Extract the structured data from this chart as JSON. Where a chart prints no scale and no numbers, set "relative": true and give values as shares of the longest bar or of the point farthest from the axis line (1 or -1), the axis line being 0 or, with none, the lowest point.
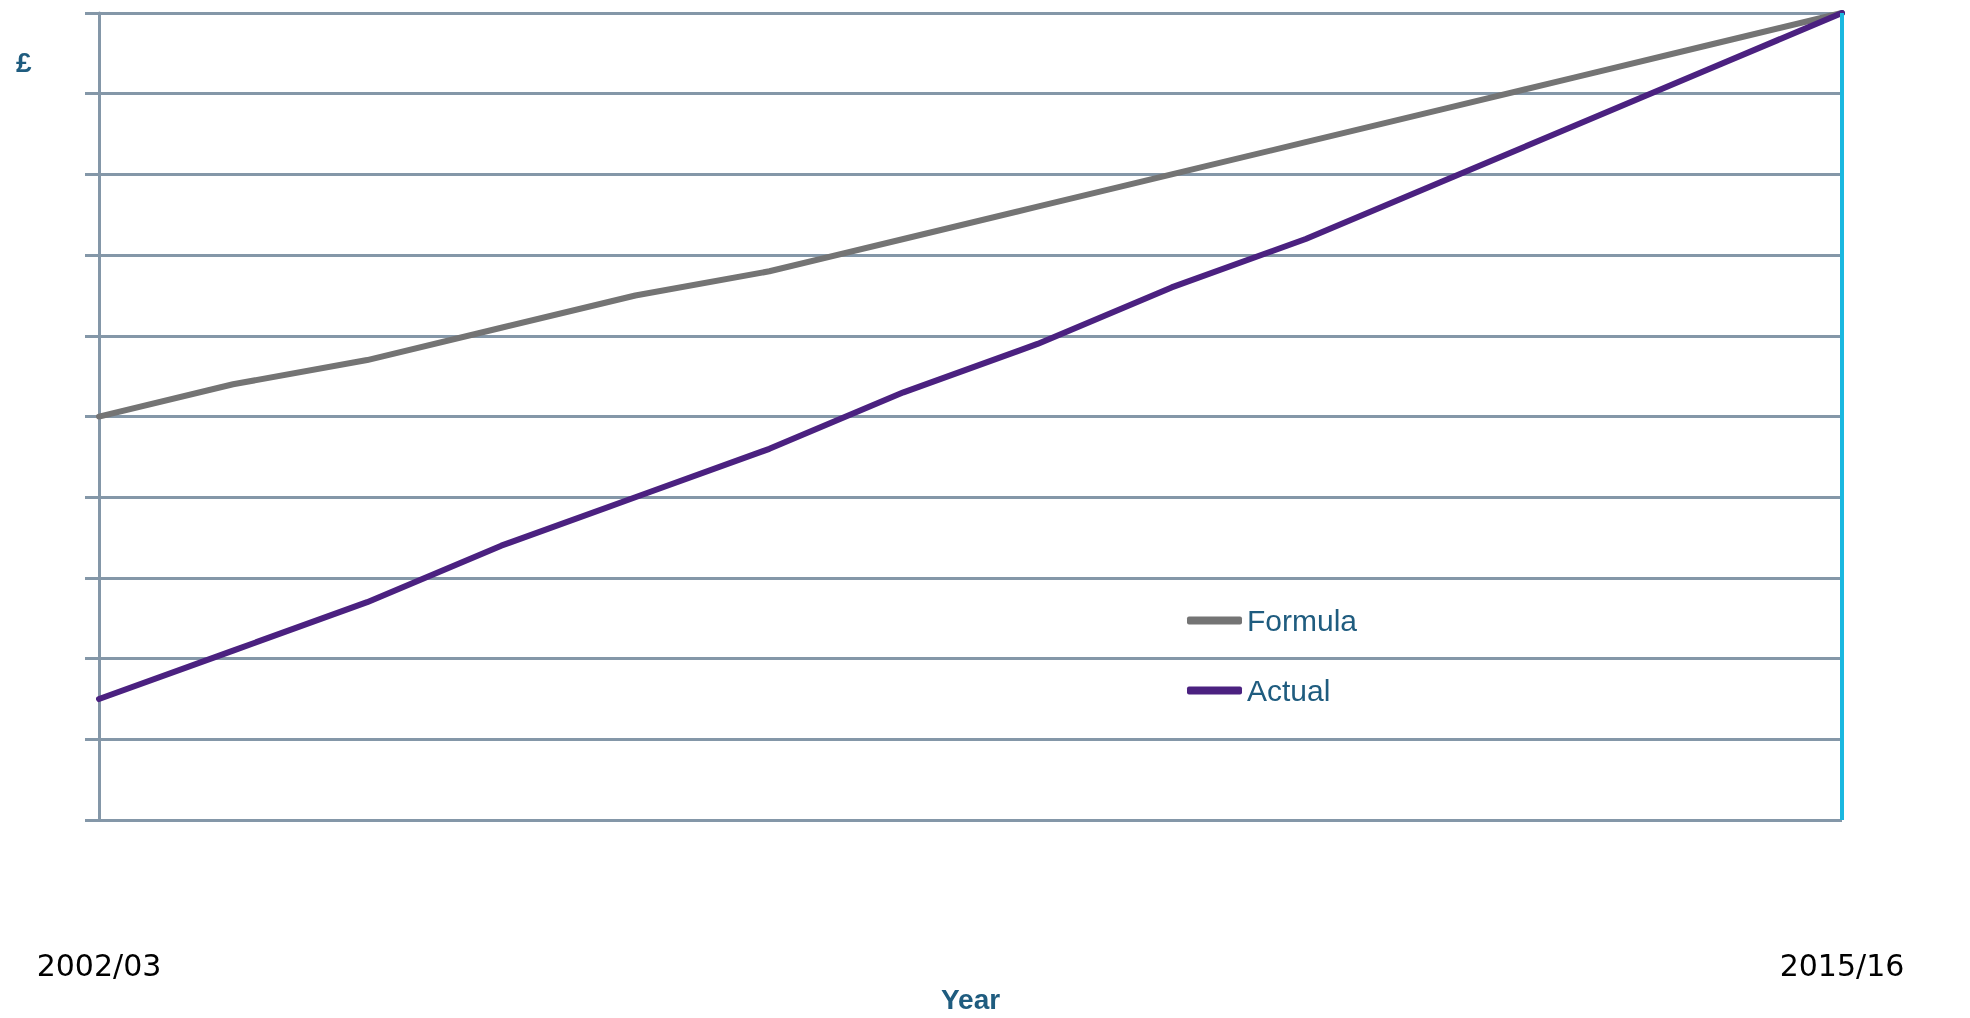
{
  "chart_data": {
    "type": "line",
    "relative": true,
    "xlabel": "Year",
    "ylabel": "£",
    "categories": [
      "2002/03",
      null,
      null,
      null,
      null,
      null,
      null,
      null,
      null,
      null,
      null,
      null,
      null,
      "2015/16"
    ],
    "series": [
      {
        "name": "Formula",
        "color": "#747474",
        "values": [
          0.5,
          0.54,
          0.57,
          0.61,
          0.65,
          0.68,
          0.72,
          0.76,
          0.8,
          0.84,
          0.88,
          0.92,
          0.96,
          1
        ]
      },
      {
        "name": "Actual",
        "color": "#4b2180",
        "values": [
          0.15,
          0.21,
          0.27,
          0.34,
          0.4,
          0.46,
          0.53,
          0.59,
          0.66,
          0.72,
          0.79,
          0.86,
          0.93,
          1
        ]
      }
    ],
    "ref_lines": [
      {
        "axis": "x",
        "value": "2015/16",
        "color": "#1ab8e0"
      }
    ],
    "grid": "y",
    "legend": "bottom right",
    "marker": "none",
    "line_style": "solid"
  }
}
